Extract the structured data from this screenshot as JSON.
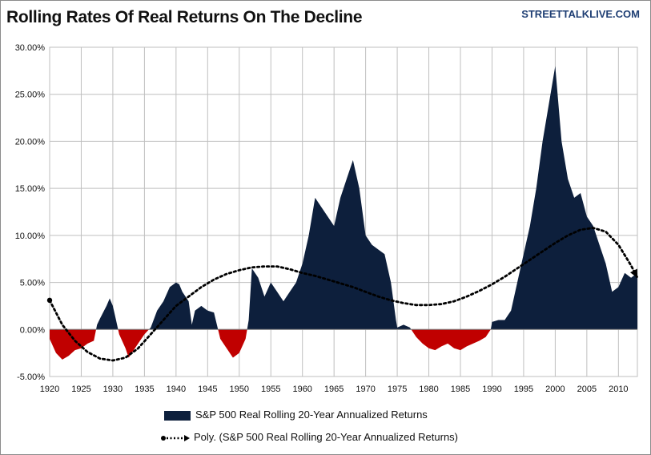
{
  "title": "Rolling Rates Of Real Returns On The Decline",
  "source": "STREETTALKLIVE.COM",
  "colors": {
    "positive": "#0d1f3c",
    "negative": "#c00000",
    "trend": "#000000",
    "grid": "#bfbfbf"
  },
  "chart_data": {
    "type": "area",
    "xlim": [
      1920,
      2013
    ],
    "ylim": [
      -0.05,
      0.3
    ],
    "x_ticks": [
      1920,
      1925,
      1930,
      1935,
      1940,
      1945,
      1950,
      1955,
      1960,
      1965,
      1970,
      1975,
      1980,
      1985,
      1990,
      1995,
      2000,
      2005,
      2010
    ],
    "y_ticks": [
      "-5.00%",
      "0.00%",
      "5.00%",
      "10.00%",
      "15.00%",
      "20.00%",
      "25.00%",
      "30.00%"
    ],
    "grid": true,
    "legend_position": "bottom",
    "series": [
      {
        "name": "S&P 500 Real Rolling 20-Year Annualized Returns",
        "points": [
          [
            1920,
            -0.01
          ],
          [
            1921,
            -0.025
          ],
          [
            1922,
            -0.032
          ],
          [
            1923,
            -0.028
          ],
          [
            1924,
            -0.022
          ],
          [
            1925,
            -0.02
          ],
          [
            1926,
            -0.015
          ],
          [
            1927,
            -0.012
          ],
          [
            1927.5,
            0.005
          ],
          [
            1928,
            0.012
          ],
          [
            1929,
            0.025
          ],
          [
            1929.5,
            0.033
          ],
          [
            1930,
            0.025
          ],
          [
            1930.5,
            0.01
          ],
          [
            1931,
            -0.005
          ],
          [
            1932,
            -0.02
          ],
          [
            1932.5,
            -0.03
          ],
          [
            1933,
            -0.025
          ],
          [
            1934,
            -0.015
          ],
          [
            1935,
            -0.005
          ],
          [
            1936,
            0.002
          ],
          [
            1937,
            0.02
          ],
          [
            1938,
            0.03
          ],
          [
            1939,
            0.045
          ],
          [
            1940,
            0.05
          ],
          [
            1940.5,
            0.048
          ],
          [
            1941,
            0.04
          ],
          [
            1942,
            0.03
          ],
          [
            1942.5,
            0.005
          ],
          [
            1943,
            0.02
          ],
          [
            1944,
            0.025
          ],
          [
            1945,
            0.02
          ],
          [
            1946,
            0.018
          ],
          [
            1947,
            -0.01
          ],
          [
            1948,
            -0.02
          ],
          [
            1949,
            -0.03
          ],
          [
            1950,
            -0.025
          ],
          [
            1951,
            -0.01
          ],
          [
            1951.5,
            0.01
          ],
          [
            1952,
            0.065
          ],
          [
            1953,
            0.055
          ],
          [
            1954,
            0.035
          ],
          [
            1955,
            0.05
          ],
          [
            1956,
            0.04
          ],
          [
            1957,
            0.03
          ],
          [
            1958,
            0.04
          ],
          [
            1959,
            0.05
          ],
          [
            1960,
            0.07
          ],
          [
            1961,
            0.1
          ],
          [
            1962,
            0.14
          ],
          [
            1963,
            0.13
          ],
          [
            1964,
            0.12
          ],
          [
            1965,
            0.11
          ],
          [
            1966,
            0.14
          ],
          [
            1967,
            0.16
          ],
          [
            1968,
            0.18
          ],
          [
            1969,
            0.15
          ],
          [
            1970,
            0.1
          ],
          [
            1971,
            0.09
          ],
          [
            1972,
            0.085
          ],
          [
            1973,
            0.08
          ],
          [
            1974,
            0.05
          ],
          [
            1974.8,
            0.01
          ],
          [
            1975,
            0.002
          ],
          [
            1976,
            0.005
          ],
          [
            1977,
            0.002
          ],
          [
            1978,
            -0.008
          ],
          [
            1979,
            -0.015
          ],
          [
            1980,
            -0.02
          ],
          [
            1981,
            -0.022
          ],
          [
            1982,
            -0.018
          ],
          [
            1983,
            -0.015
          ],
          [
            1984,
            -0.02
          ],
          [
            1985,
            -0.022
          ],
          [
            1986,
            -0.018
          ],
          [
            1987,
            -0.015
          ],
          [
            1988,
            -0.012
          ],
          [
            1989,
            -0.008
          ],
          [
            1989.8,
            0.0
          ],
          [
            1990,
            0.008
          ],
          [
            1991,
            0.01
          ],
          [
            1992,
            0.01
          ],
          [
            1993,
            0.02
          ],
          [
            1994,
            0.05
          ],
          [
            1995,
            0.08
          ],
          [
            1996,
            0.11
          ],
          [
            1997,
            0.15
          ],
          [
            1998,
            0.2
          ],
          [
            1999,
            0.24
          ],
          [
            2000,
            0.28
          ],
          [
            2001,
            0.2
          ],
          [
            2002,
            0.16
          ],
          [
            2003,
            0.14
          ],
          [
            2004,
            0.145
          ],
          [
            2005,
            0.12
          ],
          [
            2006,
            0.11
          ],
          [
            2007,
            0.09
          ],
          [
            2008,
            0.07
          ],
          [
            2009,
            0.04
          ],
          [
            2010,
            0.045
          ],
          [
            2011,
            0.06
          ],
          [
            2012,
            0.055
          ],
          [
            2013,
            0.06
          ]
        ]
      },
      {
        "name": "Poly. (S&P 500 Real Rolling 20-Year Annualized Returns)",
        "type": "line",
        "style": "dotted",
        "points": [
          [
            1920,
            0.031
          ],
          [
            1922,
            0.005
          ],
          [
            1924,
            -0.012
          ],
          [
            1926,
            -0.024
          ],
          [
            1928,
            -0.031
          ],
          [
            1930,
            -0.033
          ],
          [
            1932,
            -0.03
          ],
          [
            1934,
            -0.02
          ],
          [
            1936,
            -0.005
          ],
          [
            1938,
            0.01
          ],
          [
            1940,
            0.025
          ],
          [
            1942,
            0.035
          ],
          [
            1944,
            0.045
          ],
          [
            1946,
            0.053
          ],
          [
            1948,
            0.059
          ],
          [
            1950,
            0.063
          ],
          [
            1952,
            0.066
          ],
          [
            1954,
            0.067
          ],
          [
            1956,
            0.067
          ],
          [
            1958,
            0.064
          ],
          [
            1960,
            0.06
          ],
          [
            1962,
            0.057
          ],
          [
            1964,
            0.053
          ],
          [
            1966,
            0.049
          ],
          [
            1968,
            0.045
          ],
          [
            1970,
            0.04
          ],
          [
            1972,
            0.035
          ],
          [
            1974,
            0.031
          ],
          [
            1976,
            0.028
          ],
          [
            1978,
            0.026
          ],
          [
            1980,
            0.026
          ],
          [
            1982,
            0.027
          ],
          [
            1984,
            0.03
          ],
          [
            1986,
            0.035
          ],
          [
            1988,
            0.041
          ],
          [
            1990,
            0.048
          ],
          [
            1992,
            0.056
          ],
          [
            1994,
            0.065
          ],
          [
            1996,
            0.074
          ],
          [
            1998,
            0.083
          ],
          [
            2000,
            0.092
          ],
          [
            2002,
            0.1
          ],
          [
            2004,
            0.106
          ],
          [
            2006,
            0.108
          ],
          [
            2008,
            0.104
          ],
          [
            2010,
            0.09
          ],
          [
            2012,
            0.068
          ],
          [
            2013,
            0.055
          ]
        ]
      }
    ]
  }
}
